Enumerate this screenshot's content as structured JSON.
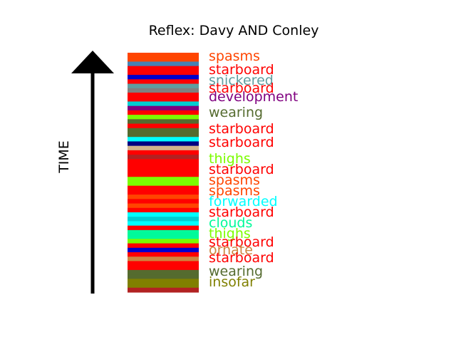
{
  "chart_data": {
    "type": "bar",
    "title": "Reflex: Davy AND Conley",
    "ylabel": "TIME",
    "stripes": [
      {
        "color": "#FF4500"
      },
      {
        "color": "#FF4500"
      },
      {
        "color": "#4682B4"
      },
      {
        "color": "#FF0000"
      },
      {
        "color": "#FF0000"
      },
      {
        "color": "#0000CD"
      },
      {
        "color": "#FF0000"
      },
      {
        "color": "#5F9EA0"
      },
      {
        "color": "#808080"
      },
      {
        "color": "#FF0000"
      },
      {
        "color": "#FF0000"
      },
      {
        "color": "#00CED1"
      },
      {
        "color": "#800080"
      },
      {
        "color": "#FF0000"
      },
      {
        "color": "#7CFC00"
      },
      {
        "color": "#556B2F"
      },
      {
        "color": "#FF0000"
      },
      {
        "color": "#556B2F"
      },
      {
        "color": "#556B2F"
      },
      {
        "color": "#00FFFF"
      },
      {
        "color": "#000080"
      },
      {
        "color": "#D2B48C"
      },
      {
        "color": "#FF0000"
      },
      {
        "color": "#B22222"
      },
      {
        "color": "#FF0000"
      },
      {
        "color": "#FF0000"
      },
      {
        "color": "#FF0000"
      },
      {
        "color": "#FF0000"
      },
      {
        "color": "#7CFC00"
      },
      {
        "color": "#7CFC00"
      },
      {
        "color": "#FF0000"
      },
      {
        "color": "#FF0000"
      },
      {
        "color": "#FF4500"
      },
      {
        "color": "#FF0000"
      },
      {
        "color": "#FF4500"
      },
      {
        "color": "#FF0000"
      },
      {
        "color": "#00FFFF"
      },
      {
        "color": "#00CED1"
      },
      {
        "color": "#00FFFF"
      },
      {
        "color": "#FF0000"
      },
      {
        "color": "#00FA9A"
      },
      {
        "color": "#00FA9A"
      },
      {
        "color": "#7CFC00"
      },
      {
        "color": "#FF0000"
      },
      {
        "color": "#0000CD"
      },
      {
        "color": "#FF0000"
      },
      {
        "color": "#CD853F"
      },
      {
        "color": "#FF0000"
      },
      {
        "color": "#FF0000"
      },
      {
        "color": "#556B2F"
      },
      {
        "color": "#556B2F"
      },
      {
        "color": "#808000"
      },
      {
        "color": "#808000"
      },
      {
        "color": "#B22222"
      }
    ],
    "labels": [
      {
        "text": "spasms",
        "color": "#FF4500"
      },
      {
        "text": "starboard",
        "color": "#FF0000"
      },
      {
        "text": "snickered",
        "color": "#5F9EA0"
      },
      {
        "text": "starboard",
        "color": "#FF0000"
      },
      {
        "text": "development",
        "color": "#800080"
      },
      {
        "text": "wearing",
        "color": "#556B2F"
      },
      {
        "text": "starboard",
        "color": "#FF0000"
      },
      {
        "text": "starboard",
        "color": "#FF0000"
      },
      {
        "text": "thighs",
        "color": "#7CFC00"
      },
      {
        "text": "starboard",
        "color": "#FF0000"
      },
      {
        "text": "spasms",
        "color": "#FF4500"
      },
      {
        "text": "spasms",
        "color": "#FF4500"
      },
      {
        "text": "forwarded",
        "color": "#00FFFF"
      },
      {
        "text": "starboard",
        "color": "#FF0000"
      },
      {
        "text": "clouds",
        "color": "#00FA9A"
      },
      {
        "text": "thighs",
        "color": "#7CFC00"
      },
      {
        "text": "starboard",
        "color": "#FF0000"
      },
      {
        "text": "ornate",
        "color": "#CD853F"
      },
      {
        "text": "starboard",
        "color": "#FF0000"
      },
      {
        "text": "wearing",
        "color": "#556B2F"
      },
      {
        "text": "insofar",
        "color": "#808000"
      }
    ]
  }
}
